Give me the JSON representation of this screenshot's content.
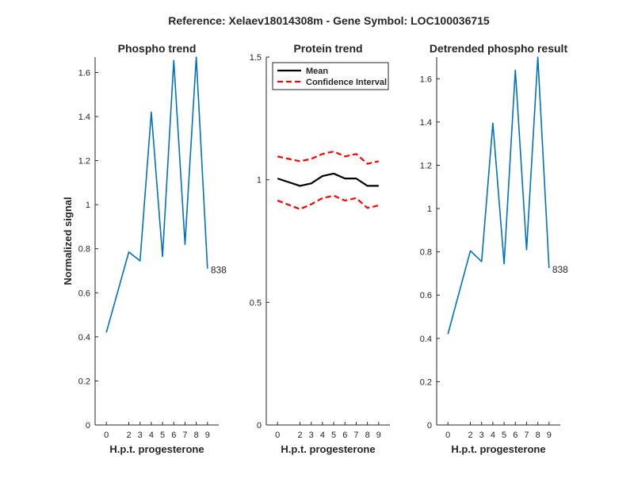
{
  "figure_title": "Reference:  Xelaev18014308m - Gene Symbol:  LOC100036715",
  "colors": {
    "phospho": "#0072BD",
    "mean": "#000000",
    "ci": "#FF0000",
    "axis": "#262626"
  },
  "chart_data": [
    {
      "type": "line",
      "title": "Phospho trend",
      "xlabel": "H.p.t. progesterone",
      "ylabel": "Normalized signal",
      "x": [
        0,
        2,
        3,
        4,
        5,
        6,
        7,
        8,
        9
      ],
      "xticks": [
        "0",
        "2",
        "3",
        "4",
        "5",
        "6",
        "7",
        "8",
        "9"
      ],
      "xlim": [
        -1,
        10
      ],
      "ylim": [
        0,
        1.67
      ],
      "yticks": [
        0,
        0.2,
        0.4,
        0.6,
        0.8,
        1,
        1.2,
        1.4,
        1.6
      ],
      "ytick_labels": [
        "0",
        "0.2",
        "0.4",
        "0.6",
        "0.8",
        "1",
        "1.2",
        "1.4",
        "1.6"
      ],
      "series": [
        {
          "values": [
            0.42,
            0.785,
            0.745,
            1.42,
            0.765,
            1.655,
            0.82,
            1.67,
            0.71
          ]
        }
      ],
      "annotation": "838"
    },
    {
      "type": "line",
      "title": "Protein trend",
      "xlabel": "H.p.t. progesterone",
      "ylabel": "",
      "x": [
        0,
        2,
        3,
        4,
        5,
        6,
        7,
        8,
        9
      ],
      "xticks": [
        "0",
        "2",
        "3",
        "4",
        "5",
        "6",
        "7",
        "8",
        "9"
      ],
      "xlim": [
        -1,
        10
      ],
      "ylim": [
        0,
        1.5
      ],
      "yticks": [
        0,
        0.5,
        1,
        1.5
      ],
      "ytick_labels": [
        "0",
        "0.5",
        "1",
        "1.5"
      ],
      "legend_position": "top-left",
      "series": [
        {
          "name": "Mean",
          "style": "solid",
          "values": [
            1.005,
            0.975,
            0.985,
            1.015,
            1.025,
            1.005,
            1.005,
            0.975,
            0.975
          ]
        },
        {
          "name": "Confidence Interval",
          "style": "dashed",
          "values": [
            1.095,
            1.075,
            1.085,
            1.105,
            1.115,
            1.095,
            1.105,
            1.065,
            1.075
          ]
        },
        {
          "style": "dashed",
          "values": [
            0.915,
            0.88,
            0.9,
            0.925,
            0.935,
            0.915,
            0.925,
            0.885,
            0.895
          ]
        }
      ]
    },
    {
      "type": "line",
      "title": "Detrended phospho result",
      "xlabel": "H.p.t. progesterone",
      "ylabel": "",
      "x": [
        0,
        2,
        3,
        4,
        5,
        6,
        7,
        8,
        9
      ],
      "xticks": [
        "0",
        "2",
        "3",
        "4",
        "5",
        "6",
        "7",
        "8",
        "9"
      ],
      "xlim": [
        -1,
        10
      ],
      "ylim": [
        0,
        1.7
      ],
      "yticks": [
        0,
        0.2,
        0.4,
        0.6,
        0.8,
        1,
        1.2,
        1.4,
        1.6
      ],
      "ytick_labels": [
        "0",
        "0.2",
        "0.4",
        "0.6",
        "0.8",
        "1",
        "1.2",
        "1.4",
        "1.6"
      ],
      "series": [
        {
          "values": [
            0.42,
            0.805,
            0.755,
            1.395,
            0.745,
            1.64,
            0.81,
            1.7,
            0.725
          ]
        }
      ],
      "annotation": "838"
    }
  ]
}
